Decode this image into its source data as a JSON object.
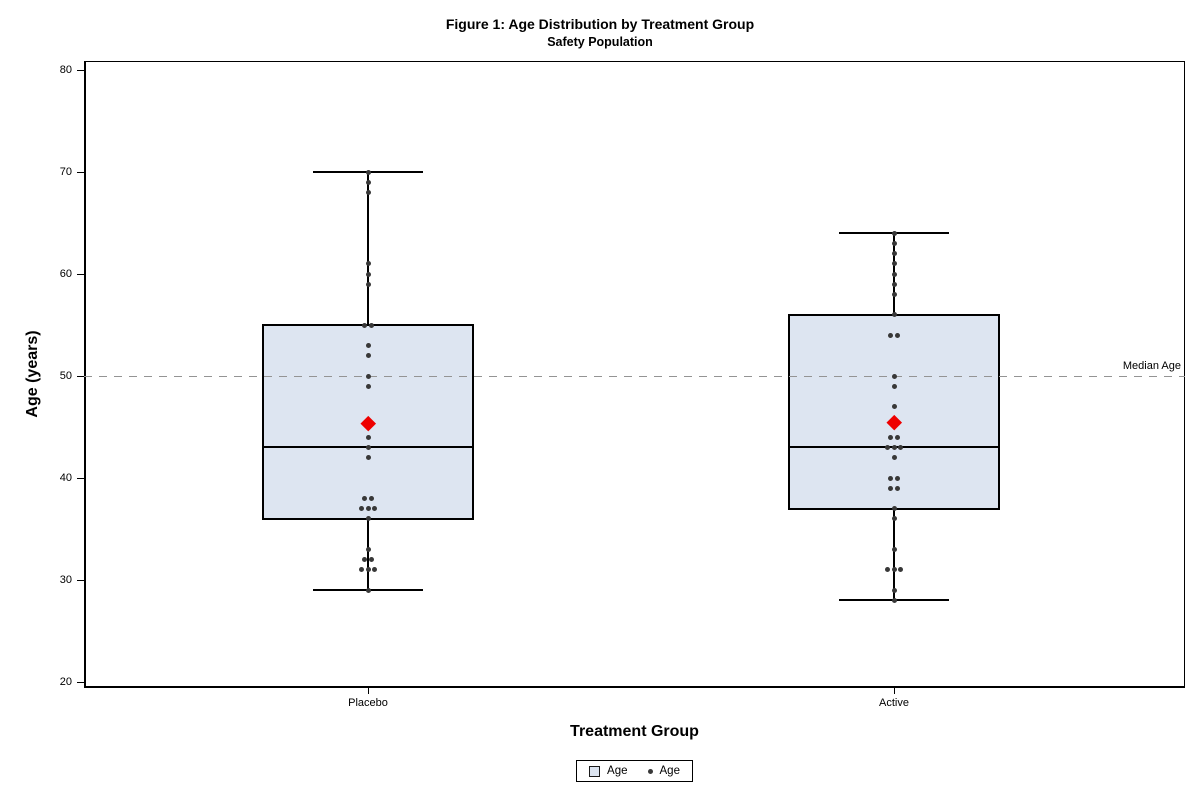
{
  "chart_data": {
    "type": "boxplot",
    "title": "Figure 1: Age Distribution by Treatment Group",
    "subtitle": "Safety Population",
    "xlabel": "Treatment Group",
    "ylabel": "Age (years)",
    "ylim": [
      20,
      80
    ],
    "yticks": [
      20,
      30,
      40,
      50,
      60,
      70,
      80
    ],
    "grid": false,
    "legend_position": "bottom-center",
    "reference_line": {
      "y": 50,
      "label": "Median Age",
      "style": "dashed"
    },
    "categories": [
      "Placebo",
      "Active"
    ],
    "groups": [
      {
        "name": "Placebo",
        "q1": 36,
        "median": 43,
        "q3": 55,
        "whisker_low": 29,
        "whisker_high": 70,
        "mean": 45.4,
        "points": [
          70,
          69,
          68,
          61,
          60,
          59,
          55,
          55,
          53,
          52,
          50,
          49,
          44,
          43,
          42,
          38,
          38,
          37,
          37,
          37,
          36,
          33,
          32,
          32,
          31,
          31,
          31,
          29
        ]
      },
      {
        "name": "Active",
        "q1": 37,
        "median": 43,
        "q3": 56,
        "whisker_low": 28,
        "whisker_high": 64,
        "mean": 45.5,
        "points": [
          64,
          63,
          62,
          61,
          60,
          59,
          58,
          56,
          54,
          54,
          50,
          49,
          47,
          44,
          44,
          43,
          43,
          43,
          42,
          40,
          40,
          39,
          39,
          37,
          36,
          33,
          31,
          31,
          31,
          29,
          28
        ]
      }
    ],
    "legend": [
      {
        "symbol": "box",
        "label": "Age"
      },
      {
        "symbol": "dot",
        "label": "Age"
      }
    ],
    "colors": {
      "box_fill": "#dde5f1",
      "box_border": "#000000",
      "point": "#383838",
      "mean_marker": "#ee0000",
      "reference_line": "#949494"
    }
  }
}
